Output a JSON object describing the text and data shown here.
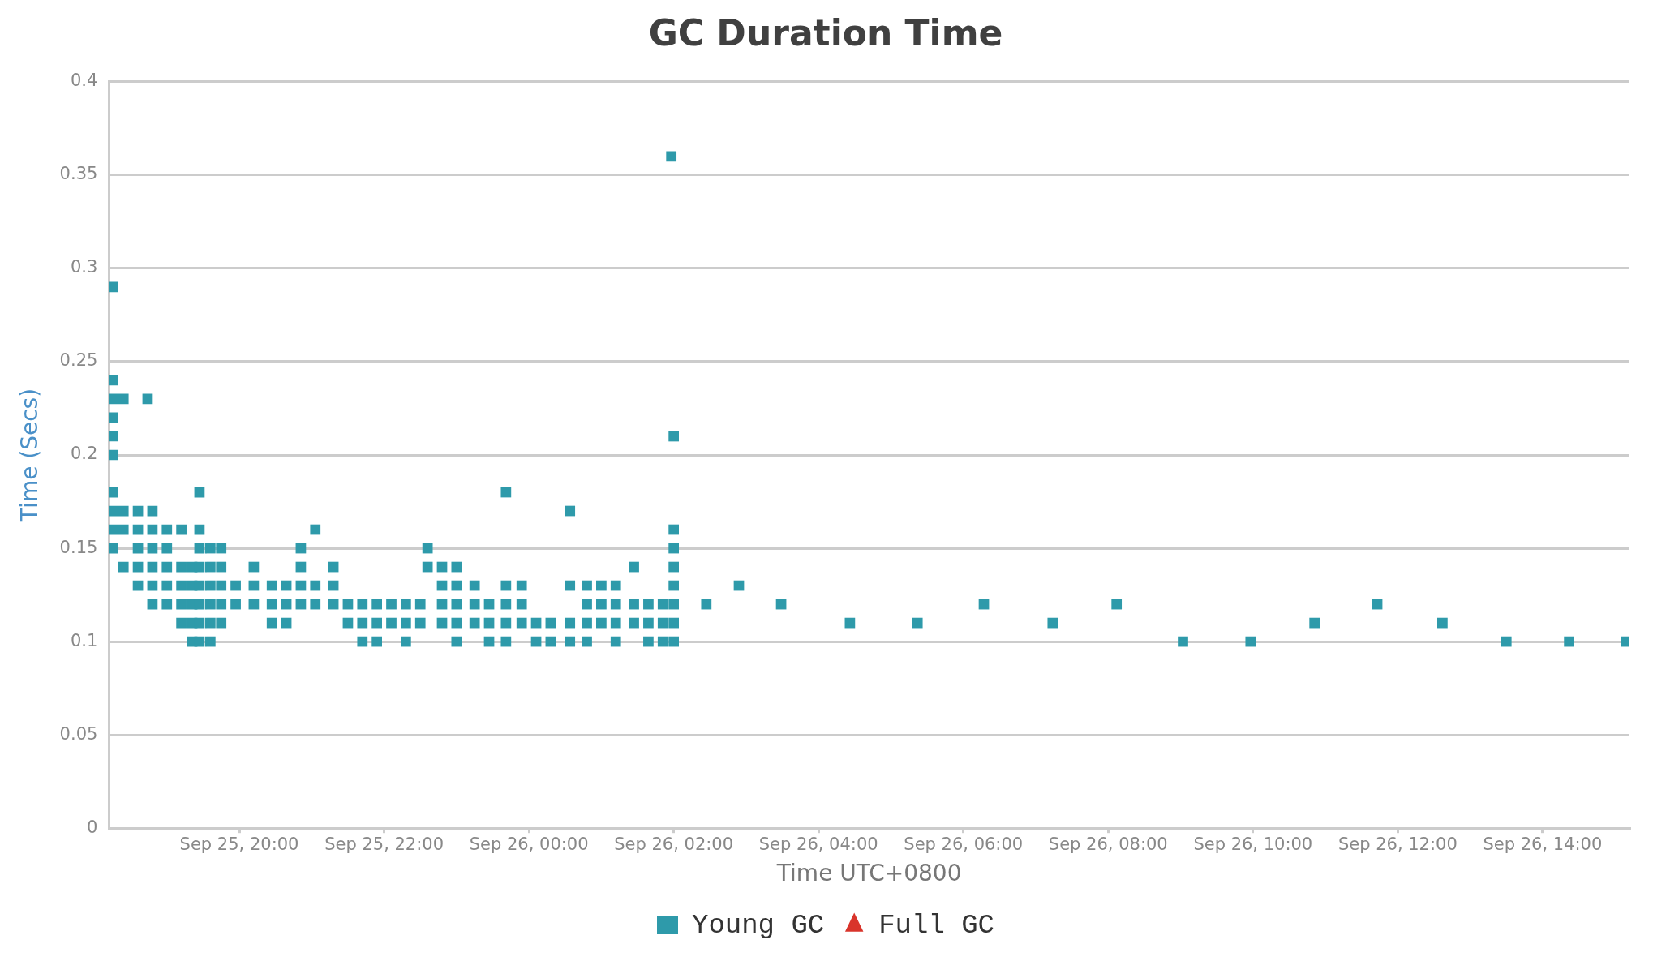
{
  "chart_data": {
    "type": "scatter",
    "title": "GC Duration Time",
    "xlabel": "Time UTC+0800",
    "ylabel": "Time (Secs)",
    "xlim": [
      "--09-25T18:12",
      "--09-26T15:12"
    ],
    "xticks": [
      {
        "value": "--09-25T20:00",
        "label": "Sep 25, 20:00"
      },
      {
        "value": "--09-25T22:00",
        "label": "Sep 25, 22:00"
      },
      {
        "value": "--09-26T00:00",
        "label": "Sep 26, 00:00"
      },
      {
        "value": "--09-26T02:00",
        "label": "Sep 26, 02:00"
      },
      {
        "value": "--09-26T04:00",
        "label": "Sep 26, 04:00"
      },
      {
        "value": "--09-26T06:00",
        "label": "Sep 26, 06:00"
      },
      {
        "value": "--09-26T08:00",
        "label": "Sep 26, 08:00"
      },
      {
        "value": "--09-26T10:00",
        "label": "Sep 26, 10:00"
      },
      {
        "value": "--09-26T12:00",
        "label": "Sep 26, 12:00"
      },
      {
        "value": "--09-26T14:00",
        "label": "Sep 26, 14:00"
      }
    ],
    "ylim": [
      0,
      0.4
    ],
    "yticks": [
      0,
      0.05,
      0.1,
      0.15,
      0.2,
      0.25,
      0.3,
      0.35,
      0.4
    ],
    "grid": "y",
    "legend": "bottom",
    "marker": "square",
    "series": [
      {
        "name": "Young GC",
        "color": "#2e9aaa",
        "x": [
          "--09-25T18:15",
          "--09-25T18:15",
          "--09-25T18:15",
          "--09-25T18:15",
          "--09-25T18:15",
          "--09-25T18:15",
          "--09-25T18:15",
          "--09-25T18:15",
          "--09-25T18:15",
          "--09-25T18:15",
          "--09-25T18:24",
          "--09-25T18:24",
          "--09-25T18:24",
          "--09-25T18:24",
          "--09-25T18:36",
          "--09-25T18:36",
          "--09-25T18:36",
          "--09-25T18:36",
          "--09-25T18:36",
          "--09-25T18:44",
          "--09-25T18:48",
          "--09-25T18:48",
          "--09-25T18:48",
          "--09-25T18:48",
          "--09-25T18:48",
          "--09-25T18:48",
          "--09-25T19:00",
          "--09-25T19:00",
          "--09-25T19:00",
          "--09-25T19:00",
          "--09-25T19:00",
          "--09-25T19:12",
          "--09-25T19:12",
          "--09-25T19:12",
          "--09-25T19:12",
          "--09-25T19:12",
          "--09-25T19:21",
          "--09-25T19:21",
          "--09-25T19:21",
          "--09-25T19:21",
          "--09-25T19:21",
          "--09-25T19:27",
          "--09-25T19:27",
          "--09-25T19:27",
          "--09-25T19:27",
          "--09-25T19:27",
          "--09-25T19:27",
          "--09-25T19:27",
          "--09-25T19:27",
          "--09-25T19:36",
          "--09-25T19:36",
          "--09-25T19:36",
          "--09-25T19:36",
          "--09-25T19:36",
          "--09-25T19:36",
          "--09-25T19:45",
          "--09-25T19:45",
          "--09-25T19:45",
          "--09-25T19:45",
          "--09-25T19:45",
          "--09-25T19:57",
          "--09-25T19:57",
          "--09-25T20:12",
          "--09-25T20:12",
          "--09-25T20:12",
          "--09-25T20:27",
          "--09-25T20:27",
          "--09-25T20:27",
          "--09-25T20:39",
          "--09-25T20:39",
          "--09-25T20:39",
          "--09-25T20:51",
          "--09-25T20:51",
          "--09-25T20:51",
          "--09-25T20:51",
          "--09-25T21:03",
          "--09-25T21:03",
          "--09-25T21:03",
          "--09-25T21:18",
          "--09-25T21:18",
          "--09-25T21:18",
          "--09-25T21:30",
          "--09-25T21:30",
          "--09-25T21:42",
          "--09-25T21:42",
          "--09-25T21:42",
          "--09-25T21:54",
          "--09-25T21:54",
          "--09-25T21:54",
          "--09-25T22:06",
          "--09-25T22:06",
          "--09-25T22:18",
          "--09-25T22:18",
          "--09-25T22:18",
          "--09-25T22:30",
          "--09-25T22:30",
          "--09-25T22:36",
          "--09-25T22:36",
          "--09-25T22:48",
          "--09-25T22:48",
          "--09-25T22:48",
          "--09-25T22:48",
          "--09-25T23:00",
          "--09-25T23:00",
          "--09-25T23:00",
          "--09-25T23:00",
          "--09-25T23:00",
          "--09-25T23:15",
          "--09-25T23:15",
          "--09-25T23:15",
          "--09-25T23:27",
          "--09-25T23:27",
          "--09-25T23:27",
          "--09-25T23:41",
          "--09-25T23:41",
          "--09-25T23:41",
          "--09-25T23:41",
          "--09-25T23:41",
          "--09-25T23:54",
          "--09-25T23:54",
          "--09-25T23:54",
          "--09-26T00:06",
          "--09-26T00:06",
          "--09-26T00:18",
          "--09-26T00:18",
          "--09-26T00:34",
          "--09-26T00:34",
          "--09-26T00:34",
          "--09-26T00:34",
          "--09-26T00:48",
          "--09-26T00:48",
          "--09-26T00:48",
          "--09-26T00:48",
          "--09-26T01:00",
          "--09-26T01:00",
          "--09-26T01:00",
          "--09-26T01:12",
          "--09-26T01:12",
          "--09-26T01:12",
          "--09-26T01:12",
          "--09-26T01:27",
          "--09-26T01:27",
          "--09-26T01:27",
          "--09-26T01:39",
          "--09-26T01:39",
          "--09-26T01:39",
          "--09-26T01:51",
          "--09-26T01:51",
          "--09-26T01:51",
          "--09-26T01:58",
          "--09-26T02:00",
          "--09-26T02:00",
          "--09-26T02:00",
          "--09-26T02:00",
          "--09-26T02:00",
          "--09-26T02:00",
          "--09-26T02:00",
          "--09-26T02:00",
          "--09-26T02:27",
          "--09-26T02:54",
          "--09-26T03:29",
          "--09-26T04:26",
          "--09-26T05:22",
          "--09-26T06:17",
          "--09-26T07:14",
          "--09-26T08:07",
          "--09-26T09:02",
          "--09-26T09:58",
          "--09-26T10:51",
          "--09-26T11:43",
          "--09-26T12:37",
          "--09-26T13:30",
          "--09-26T14:22",
          "--09-26T15:09"
        ],
        "values": [
          0.29,
          0.24,
          0.23,
          0.22,
          0.21,
          0.2,
          0.18,
          0.17,
          0.16,
          0.15,
          0.23,
          0.17,
          0.16,
          0.14,
          0.17,
          0.16,
          0.15,
          0.14,
          0.13,
          0.23,
          0.17,
          0.16,
          0.15,
          0.14,
          0.13,
          0.12,
          0.16,
          0.15,
          0.14,
          0.13,
          0.12,
          0.16,
          0.14,
          0.13,
          0.12,
          0.11,
          0.14,
          0.13,
          0.12,
          0.11,
          0.1,
          0.18,
          0.16,
          0.15,
          0.14,
          0.13,
          0.12,
          0.11,
          0.1,
          0.15,
          0.14,
          0.13,
          0.12,
          0.11,
          0.1,
          0.15,
          0.14,
          0.13,
          0.12,
          0.11,
          0.13,
          0.12,
          0.14,
          0.13,
          0.12,
          0.13,
          0.12,
          0.11,
          0.13,
          0.12,
          0.11,
          0.15,
          0.14,
          0.13,
          0.12,
          0.16,
          0.13,
          0.12,
          0.14,
          0.13,
          0.12,
          0.12,
          0.11,
          0.12,
          0.11,
          0.1,
          0.12,
          0.11,
          0.1,
          0.12,
          0.11,
          0.12,
          0.11,
          0.1,
          0.12,
          0.11,
          0.15,
          0.14,
          0.14,
          0.13,
          0.12,
          0.11,
          0.14,
          0.13,
          0.12,
          0.11,
          0.1,
          0.13,
          0.12,
          0.11,
          0.12,
          0.11,
          0.1,
          0.18,
          0.13,
          0.12,
          0.11,
          0.1,
          0.13,
          0.12,
          0.11,
          0.11,
          0.1,
          0.11,
          0.1,
          0.17,
          0.13,
          0.11,
          0.1,
          0.13,
          0.12,
          0.11,
          0.1,
          0.13,
          0.12,
          0.11,
          0.13,
          0.12,
          0.11,
          0.1,
          0.14,
          0.12,
          0.11,
          0.12,
          0.11,
          0.1,
          0.12,
          0.11,
          0.1,
          0.36,
          0.21,
          0.16,
          0.15,
          0.14,
          0.13,
          0.12,
          0.11,
          0.1,
          0.12,
          0.13,
          0.12,
          0.11,
          0.11,
          0.12,
          0.11,
          0.12,
          0.1,
          0.1,
          0.11,
          0.12,
          0.11,
          0.1,
          0.1,
          0.1
        ]
      },
      {
        "name": "Full GC",
        "color": "#d9342b",
        "marker": "triangle"
      }
    ]
  }
}
